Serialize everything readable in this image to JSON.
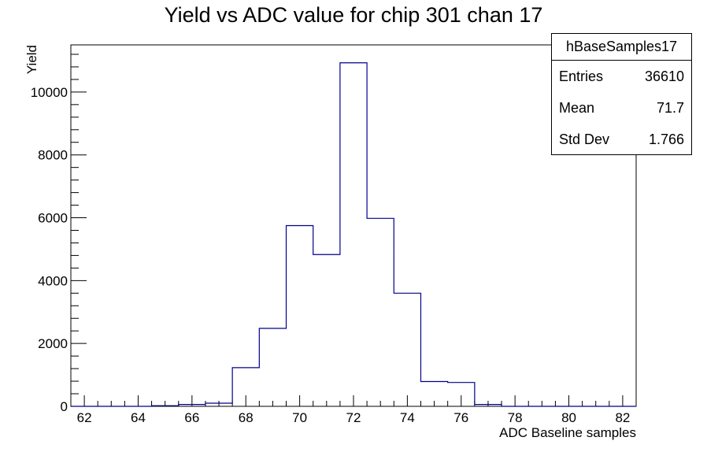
{
  "chart_data": {
    "type": "bar",
    "histogram": true,
    "title": "Yield vs ADC value for chip 301 chan 17",
    "xlabel": "ADC Baseline samples",
    "ylabel": "Yield",
    "xlim": [
      61.5,
      82.5
    ],
    "ylim": [
      0,
      11500
    ],
    "xticks": [
      62,
      64,
      66,
      68,
      70,
      72,
      74,
      76,
      78,
      80,
      82
    ],
    "yticks": [
      0,
      2000,
      4000,
      6000,
      8000,
      10000
    ],
    "line_color": "#00008b",
    "bins": [
      {
        "x": 62,
        "value": 0
      },
      {
        "x": 63,
        "value": 0
      },
      {
        "x": 64,
        "value": 0
      },
      {
        "x": 65,
        "value": 20
      },
      {
        "x": 66,
        "value": 60
      },
      {
        "x": 67,
        "value": 100
      },
      {
        "x": 68,
        "value": 1230
      },
      {
        "x": 69,
        "value": 2480
      },
      {
        "x": 70,
        "value": 5750
      },
      {
        "x": 71,
        "value": 4830
      },
      {
        "x": 72,
        "value": 10930
      },
      {
        "x": 73,
        "value": 5980
      },
      {
        "x": 74,
        "value": 3600
      },
      {
        "x": 75,
        "value": 790
      },
      {
        "x": 76,
        "value": 760
      },
      {
        "x": 77,
        "value": 60
      },
      {
        "x": 78,
        "value": 0
      },
      {
        "x": 79,
        "value": 0
      },
      {
        "x": 80,
        "value": 0
      },
      {
        "x": 81,
        "value": 0
      },
      {
        "x": 82,
        "value": 0
      }
    ]
  },
  "stats_box": {
    "name": "hBaseSamples17",
    "rows": [
      {
        "label": "Entries",
        "value": "36610"
      },
      {
        "label": "Mean",
        "value": "71.7"
      },
      {
        "label": "Std Dev",
        "value": "1.766"
      }
    ]
  }
}
